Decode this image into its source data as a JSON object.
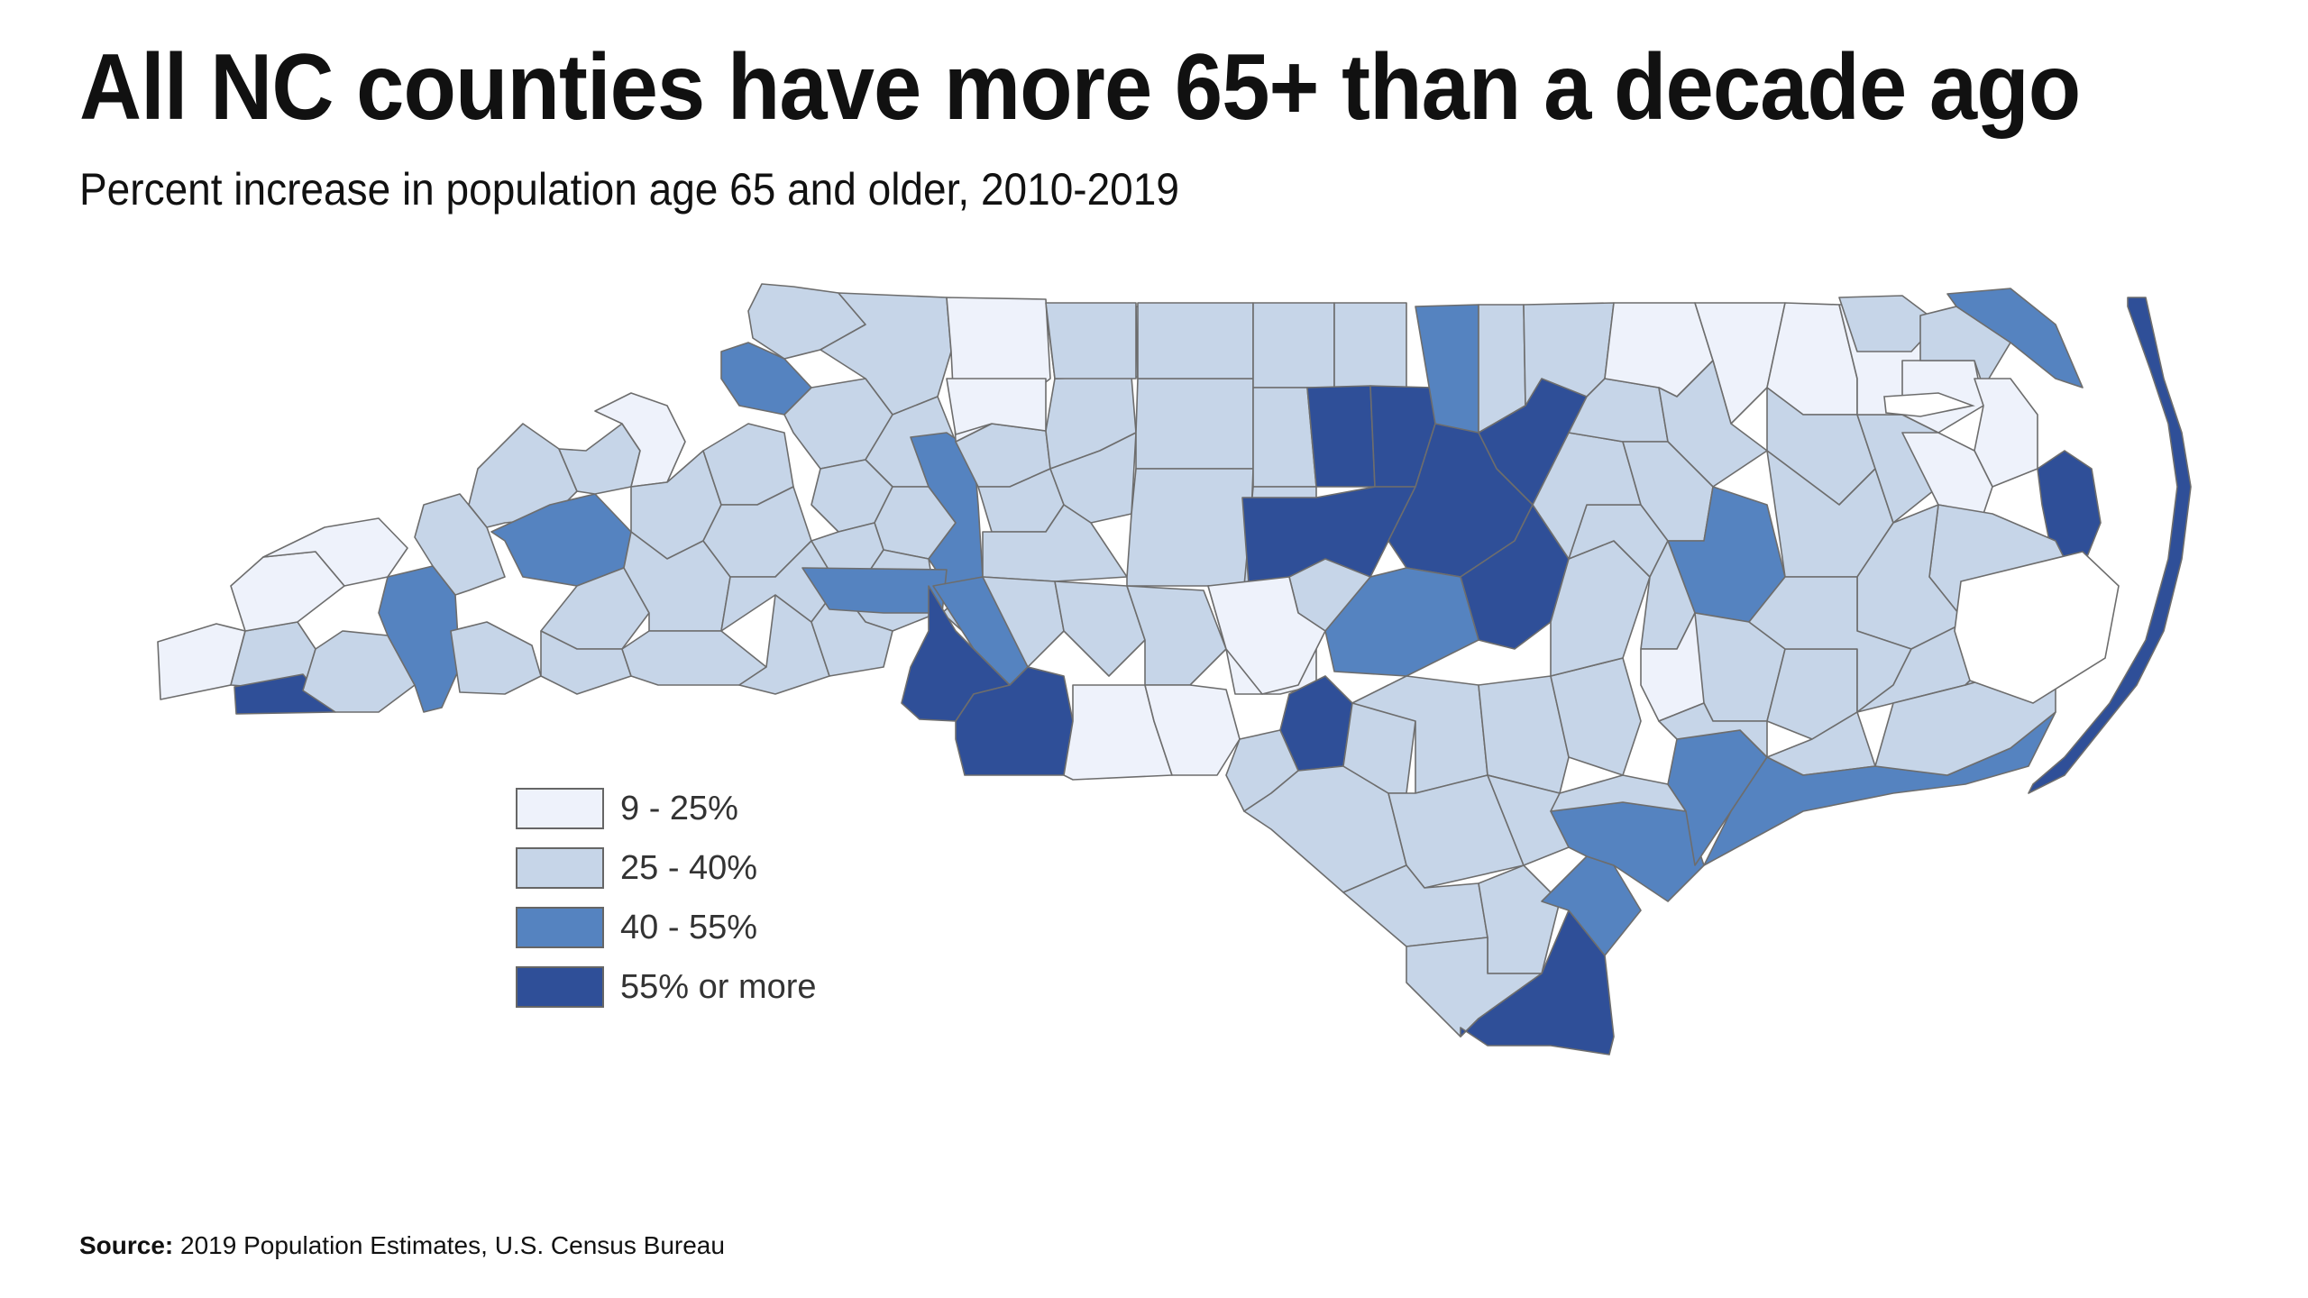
{
  "title": "All NC counties have more 65+ than a decade ago",
  "subtitle": "Percent increase in population age 65 and older, 2010-2019",
  "source": {
    "label": "Source:",
    "text": "2019 Population Estimates, U.S. Census Bureau"
  },
  "legend": {
    "items": [
      {
        "label": "9 - 25%",
        "color": "#eef2fb"
      },
      {
        "label": "25 - 40%",
        "color": "#c6d5e8"
      },
      {
        "label": "40 - 55%",
        "color": "#5583c0"
      },
      {
        "label": "55% or more",
        "color": "#2f4f98"
      }
    ]
  },
  "chart_data": {
    "type": "choropleth",
    "region": "North Carolina counties",
    "measure": "Percent increase in population age 65 and older, 2010-2019",
    "bins": [
      "9 - 25%",
      "25 - 40%",
      "40 - 55%",
      "55% or more"
    ],
    "bin_colors": [
      "#eef2fb",
      "#c6d5e8",
      "#5583c0",
      "#2f4f98"
    ]
  }
}
